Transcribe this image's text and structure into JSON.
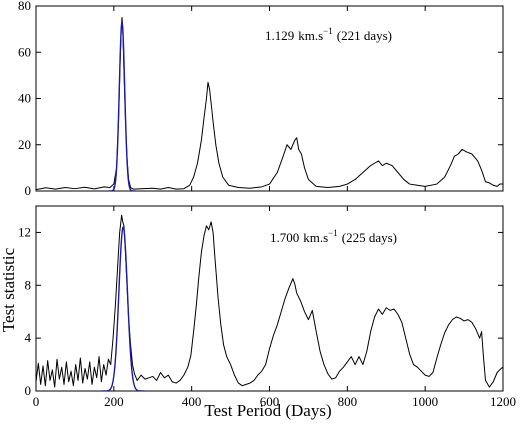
{
  "chart_data": [
    {
      "type": "line",
      "title": "",
      "xlabel": "",
      "ylabel": "",
      "xlim": [
        0,
        1200
      ],
      "ylim": [
        0,
        80
      ],
      "xticks": [
        "0",
        "200",
        "400",
        "600",
        "800",
        "1000",
        "1200"
      ],
      "xticks_shown": false,
      "yticks": [
        "0",
        "20",
        "40",
        "60",
        "80"
      ],
      "annotation": {
        "value": "1.129",
        "unit": "km.s",
        "exponent": "−1",
        "suffix": "(221 days)"
      },
      "series": [
        {
          "kind": "test-statistic",
          "color": "#000000",
          "points": [
            [
              0,
              0.6
            ],
            [
              25,
              1.4
            ],
            [
              50,
              0.8
            ],
            [
              75,
              1.5
            ],
            [
              100,
              1.0
            ],
            [
              125,
              1.6
            ],
            [
              150,
              0.9
            ],
            [
              175,
              1.8
            ],
            [
              190,
              1.5
            ],
            [
              200,
              3.0
            ],
            [
              207,
              10
            ],
            [
              212,
              30
            ],
            [
              216,
              55
            ],
            [
              219,
              70
            ],
            [
              221,
              75
            ],
            [
              223,
              70
            ],
            [
              226,
              52
            ],
            [
              230,
              30
            ],
            [
              234,
              14
            ],
            [
              238,
              5
            ],
            [
              243,
              1.5
            ],
            [
              250,
              0.8
            ],
            [
              270,
              1.0
            ],
            [
              300,
              1.2
            ],
            [
              320,
              0.8
            ],
            [
              340,
              1.5
            ],
            [
              360,
              0.8
            ],
            [
              380,
              1.0
            ],
            [
              395,
              2.5
            ],
            [
              405,
              6
            ],
            [
              415,
              12
            ],
            [
              425,
              22
            ],
            [
              432,
              32
            ],
            [
              438,
              40
            ],
            [
              442,
              47
            ],
            [
              446,
              44
            ],
            [
              450,
              38
            ],
            [
              455,
              30
            ],
            [
              462,
              20
            ],
            [
              470,
              12
            ],
            [
              480,
              6
            ],
            [
              495,
              2.5
            ],
            [
              520,
              1.5
            ],
            [
              550,
              1.2
            ],
            [
              580,
              1.8
            ],
            [
              600,
              3
            ],
            [
              620,
              8
            ],
            [
              635,
              15
            ],
            [
              645,
              20
            ],
            [
              655,
              18
            ],
            [
              665,
              22
            ],
            [
              670,
              23
            ],
            [
              675,
              18
            ],
            [
              682,
              16
            ],
            [
              690,
              10
            ],
            [
              700,
              5
            ],
            [
              720,
              2
            ],
            [
              750,
              1.5
            ],
            [
              780,
              2.0
            ],
            [
              800,
              3.0
            ],
            [
              820,
              5
            ],
            [
              840,
              8
            ],
            [
              860,
              11
            ],
            [
              870,
              12
            ],
            [
              880,
              13
            ],
            [
              890,
              11
            ],
            [
              900,
              12
            ],
            [
              915,
              11
            ],
            [
              930,
              8
            ],
            [
              945,
              5
            ],
            [
              960,
              3
            ],
            [
              980,
              2.5
            ],
            [
              1000,
              2.0
            ],
            [
              1030,
              3
            ],
            [
              1050,
              6
            ],
            [
              1065,
              11
            ],
            [
              1075,
              15
            ],
            [
              1085,
              16
            ],
            [
              1095,
              18
            ],
            [
              1105,
              17
            ],
            [
              1120,
              16
            ],
            [
              1135,
              13
            ],
            [
              1145,
              9
            ],
            [
              1155,
              4
            ],
            [
              1165,
              3.5
            ],
            [
              1175,
              2.5
            ],
            [
              1185,
              2
            ],
            [
              1192,
              3
            ],
            [
              1200,
              3
            ]
          ]
        },
        {
          "kind": "gaussian-fit",
          "color": "#1a1aa6",
          "center": 221,
          "amplitude": 73,
          "sigma": 7
        }
      ]
    },
    {
      "type": "line",
      "title": "",
      "xlabel": "Test Period (Days)",
      "ylabel": "Test statistic",
      "xlim": [
        0,
        1200
      ],
      "ylim": [
        0,
        14
      ],
      "xticks": [
        "0",
        "200",
        "400",
        "600",
        "800",
        "1000",
        "1200"
      ],
      "xticks_shown": true,
      "yticks": [
        "0",
        "4",
        "8",
        "12"
      ],
      "annotation": {
        "value": "1.700",
        "unit": "km.s",
        "exponent": "−1",
        "suffix": "(225 days)"
      },
      "series": [
        {
          "kind": "test-statistic",
          "color": "#000000",
          "points": [
            [
              0,
              0.7
            ],
            [
              6,
              2.1
            ],
            [
              12,
              0.5
            ],
            [
              18,
              1.9
            ],
            [
              24,
              0.4
            ],
            [
              30,
              2.3
            ],
            [
              36,
              0.8
            ],
            [
              42,
              1.6
            ],
            [
              48,
              0.3
            ],
            [
              54,
              2.4
            ],
            [
              60,
              0.9
            ],
            [
              66,
              1.8
            ],
            [
              72,
              0.5
            ],
            [
              78,
              2.2
            ],
            [
              84,
              0.7
            ],
            [
              90,
              1.5
            ],
            [
              96,
              0.4
            ],
            [
              102,
              2.0
            ],
            [
              108,
              0.8
            ],
            [
              114,
              2.5
            ],
            [
              120,
              0.6
            ],
            [
              126,
              1.7
            ],
            [
              132,
              0.9
            ],
            [
              138,
              2.2
            ],
            [
              144,
              0.5
            ],
            [
              150,
              1.8
            ],
            [
              156,
              1.0
            ],
            [
              162,
              2.6
            ],
            [
              168,
              0.7
            ],
            [
              174,
              2.0
            ],
            [
              180,
              1.2
            ],
            [
              186,
              2.4
            ],
            [
              192,
              2.0
            ],
            [
              198,
              4.0
            ],
            [
              204,
              6.5
            ],
            [
              210,
              9.5
            ],
            [
              215,
              12
            ],
            [
              220,
              13.3
            ],
            [
              223,
              12.8
            ],
            [
              226,
              12.5
            ],
            [
              229,
              11
            ],
            [
              233,
              8.5
            ],
            [
              238,
              5.5
            ],
            [
              243,
              3.5
            ],
            [
              248,
              2.0
            ],
            [
              253,
              1.3
            ],
            [
              260,
              0.8
            ],
            [
              270,
              1.2
            ],
            [
              280,
              0.9
            ],
            [
              290,
              1.0
            ],
            [
              300,
              1.1
            ],
            [
              310,
              0.8
            ],
            [
              320,
              1.4
            ],
            [
              330,
              1.0
            ],
            [
              340,
              1.2
            ],
            [
              350,
              0.7
            ],
            [
              360,
              0.6
            ],
            [
              370,
              0.8
            ],
            [
              380,
              1.2
            ],
            [
              390,
              1.8
            ],
            [
              398,
              2.7
            ],
            [
              405,
              4.5
            ],
            [
              412,
              6.5
            ],
            [
              418,
              8.5
            ],
            [
              425,
              10.5
            ],
            [
              432,
              11.8
            ],
            [
              438,
              12.5
            ],
            [
              444,
              12.2
            ],
            [
              450,
              12.8
            ],
            [
              455,
              12.0
            ],
            [
              460,
              10.0
            ],
            [
              468,
              7.0
            ],
            [
              475,
              5.0
            ],
            [
              482,
              3.5
            ],
            [
              490,
              2.6
            ],
            [
              500,
              2.0
            ],
            [
              510,
              1.2
            ],
            [
              520,
              0.6
            ],
            [
              530,
              0.4
            ],
            [
              540,
              0.5
            ],
            [
              550,
              0.6
            ],
            [
              560,
              0.8
            ],
            [
              570,
              1.2
            ],
            [
              580,
              1.5
            ],
            [
              590,
              2.0
            ],
            [
              600,
              3.2
            ],
            [
              610,
              4.2
            ],
            [
              620,
              5.0
            ],
            [
              630,
              6.0
            ],
            [
              640,
              7.0
            ],
            [
              650,
              7.8
            ],
            [
              660,
              8.5
            ],
            [
              665,
              8.1
            ],
            [
              670,
              7.4
            ],
            [
              680,
              6.8
            ],
            [
              690,
              6.0
            ],
            [
              700,
              5.4
            ],
            [
              710,
              6.1
            ],
            [
              720,
              4.5
            ],
            [
              730,
              3.0
            ],
            [
              740,
              2.0
            ],
            [
              750,
              1.3
            ],
            [
              760,
              0.9
            ],
            [
              770,
              1.0
            ],
            [
              780,
              1.5
            ],
            [
              790,
              1.8
            ],
            [
              800,
              2.2
            ],
            [
              810,
              2.6
            ],
            [
              820,
              2.0
            ],
            [
              830,
              2.6
            ],
            [
              840,
              2.0
            ],
            [
              850,
              3.0
            ],
            [
              860,
              4.5
            ],
            [
              870,
              5.6
            ],
            [
              880,
              6.2
            ],
            [
              890,
              5.8
            ],
            [
              900,
              6.3
            ],
            [
              910,
              6.1
            ],
            [
              920,
              6.2
            ],
            [
              930,
              5.8
            ],
            [
              940,
              5.2
            ],
            [
              950,
              4.0
            ],
            [
              960,
              2.8
            ],
            [
              970,
              2.0
            ],
            [
              980,
              1.8
            ],
            [
              990,
              1.5
            ],
            [
              1000,
              1.2
            ],
            [
              1010,
              1.1
            ],
            [
              1020,
              1.4
            ],
            [
              1030,
              2.5
            ],
            [
              1040,
              3.5
            ],
            [
              1050,
              4.4
            ],
            [
              1060,
              5.0
            ],
            [
              1070,
              5.4
            ],
            [
              1080,
              5.6
            ],
            [
              1090,
              5.5
            ],
            [
              1100,
              5.3
            ],
            [
              1110,
              5.4
            ],
            [
              1120,
              5.2
            ],
            [
              1130,
              4.7
            ],
            [
              1140,
              4.0
            ],
            [
              1145,
              4.5
            ],
            [
              1150,
              2.5
            ],
            [
              1155,
              0.8
            ],
            [
              1165,
              0.3
            ],
            [
              1175,
              0.7
            ],
            [
              1185,
              1.4
            ],
            [
              1195,
              1.7
            ],
            [
              1200,
              1.8
            ]
          ]
        },
        {
          "kind": "gaussian-fit",
          "color": "#1a1aa6",
          "center": 224,
          "amplitude": 12.4,
          "sigma": 11
        }
      ]
    }
  ]
}
